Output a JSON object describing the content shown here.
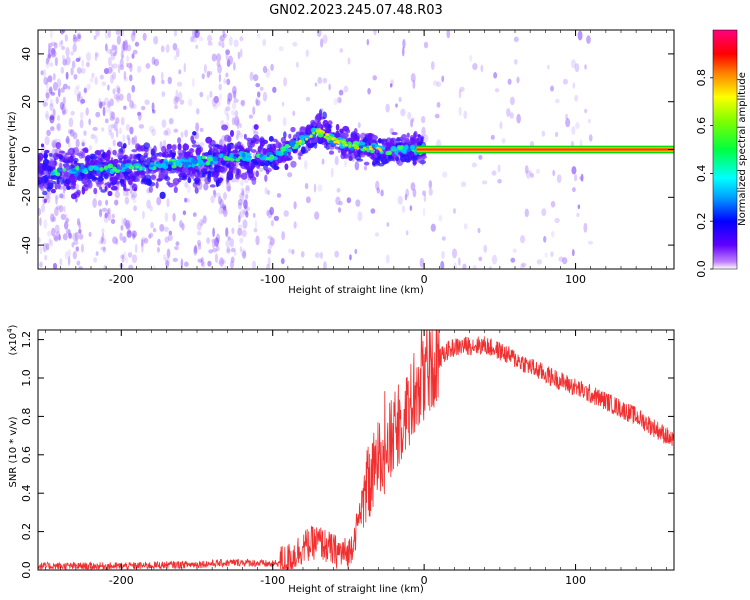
{
  "title": "GN02.2023.245.07.48.R03",
  "colors": {
    "snr_line": "#f03030",
    "background": "#ffffff",
    "axis": "#000000",
    "spectrogram_band_center": "#ff3000",
    "spectrogram_band_edge": "#00e000"
  },
  "chart_data": [
    {
      "type": "heatmap",
      "xlabel": "Height of straight line (km)",
      "ylabel": "Frequency (Hz)",
      "xlim": [
        -255,
        165
      ],
      "ylim": [
        -50,
        50
      ],
      "xticks": [
        -200,
        -100,
        0,
        100
      ],
      "yticks": [
        -40,
        -20,
        0,
        20,
        40
      ],
      "ridge": {
        "x": [
          -250,
          -200,
          -150,
          -120,
          -100,
          -85,
          -70,
          -60,
          -50,
          -40,
          -30,
          -20,
          -10,
          0,
          50,
          100,
          165
        ],
        "y": [
          -10,
          -8,
          -5,
          -3,
          -3,
          2,
          8,
          4,
          2,
          1,
          0,
          -1,
          0,
          0,
          0,
          0,
          0
        ]
      },
      "colorbar": {
        "label": "Normalized spectral amplitude",
        "range": [
          0,
          1
        ],
        "ticks": [
          0.0,
          0.2,
          0.4,
          0.6,
          0.8
        ],
        "colormap": "rainbow"
      }
    },
    {
      "type": "line",
      "xlabel": "Height of straight line (km)",
      "ylabel": "SNR (10 * v/v)",
      "yscale_label": "(x10",
      "yscale_exponent": "4",
      "xlim": [
        -255,
        165
      ],
      "ylim": [
        0,
        1.25
      ],
      "xticks": [
        -200,
        -100,
        0,
        100
      ],
      "yticks": [
        0.0,
        0.2,
        0.4,
        0.6,
        0.8,
        1.0,
        1.2
      ],
      "series": [
        {
          "x": [
            -255,
            -200,
            -150,
            -120,
            -100,
            -90,
            -80,
            -70,
            -60,
            -50,
            -45,
            -40,
            -35,
            -30,
            -25,
            -20,
            -15,
            -10,
            -5,
            0,
            5,
            10,
            15,
            20,
            30,
            40,
            50,
            60,
            80,
            100,
            120,
            140,
            160,
            165
          ],
          "y": [
            0.02,
            0.02,
            0.03,
            0.04,
            0.03,
            0.05,
            0.12,
            0.15,
            0.1,
            0.08,
            0.2,
            0.38,
            0.45,
            0.6,
            0.62,
            0.7,
            0.78,
            0.85,
            0.92,
            0.98,
            1.05,
            1.1,
            1.14,
            1.16,
            1.17,
            1.17,
            1.14,
            1.1,
            1.02,
            0.95,
            0.88,
            0.8,
            0.7,
            0.66
          ]
        }
      ]
    }
  ]
}
